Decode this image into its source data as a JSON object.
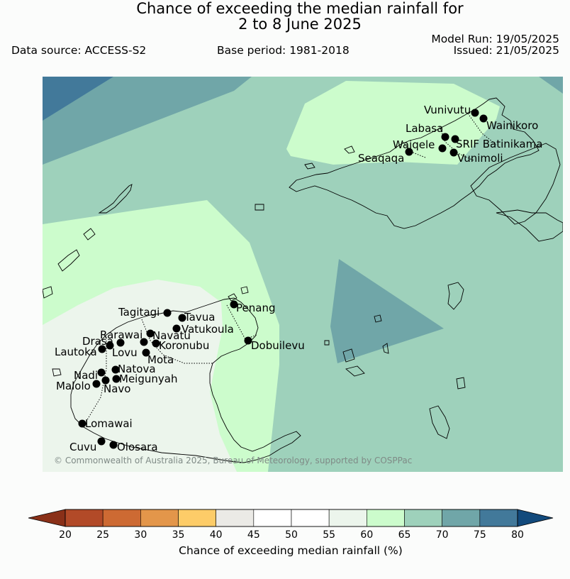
{
  "title_line1": "Chance of exceeding the median rainfall for",
  "title_line2": "2 to 8 June 2025",
  "data_source": "Data source: ACCESS-S2",
  "base_period": "Base period: 1981-2018",
  "model_run": "Model Run: 19/05/2025",
  "issued": "Issued: 21/05/2025",
  "copyright": "© Commonwealth of Australia 2025, Bureau of Meteorology, supported by COSPPac",
  "colorbar": {
    "label": "Chance of exceeding median rainfall (%)",
    "ticks": [
      "20",
      "25",
      "30",
      "35",
      "40",
      "45",
      "50",
      "55",
      "60",
      "65",
      "70",
      "75",
      "80"
    ],
    "colors": [
      "#b24a28",
      "#cd6a33",
      "#e3964a",
      "#fdcc68",
      "#ebeae6",
      "#ffffff",
      "#ffffff",
      "#ecf5ec",
      "#ccfccc",
      "#9ed1bb",
      "#70a6a8",
      "#42799a"
    ],
    "under_color": "#8a3018",
    "over_color": "#124a7c"
  },
  "places": [
    {
      "name": "Vunivutu"
    },
    {
      "name": "Wainikoro"
    },
    {
      "name": "Labasa"
    },
    {
      "name": "SRIF Batinikama"
    },
    {
      "name": "Waiqele"
    },
    {
      "name": "Seaqaqa"
    },
    {
      "name": "Vunimoli"
    },
    {
      "name": "Penang"
    },
    {
      "name": "Tagitagi"
    },
    {
      "name": "Tavua"
    },
    {
      "name": "Vatukoula"
    },
    {
      "name": "Rarawai"
    },
    {
      "name": "Navatu"
    },
    {
      "name": "Drasa"
    },
    {
      "name": "Koronubu"
    },
    {
      "name": "Lautoka"
    },
    {
      "name": "Lovu"
    },
    {
      "name": "Dobuilevu"
    },
    {
      "name": "Mota"
    },
    {
      "name": "Natova"
    },
    {
      "name": "Nadi"
    },
    {
      "name": "Meigunyah"
    },
    {
      "name": "Malolo"
    },
    {
      "name": "Navo"
    },
    {
      "name": "Lomawai"
    },
    {
      "name": "Cuvu"
    },
    {
      "name": "Olosara"
    }
  ]
}
